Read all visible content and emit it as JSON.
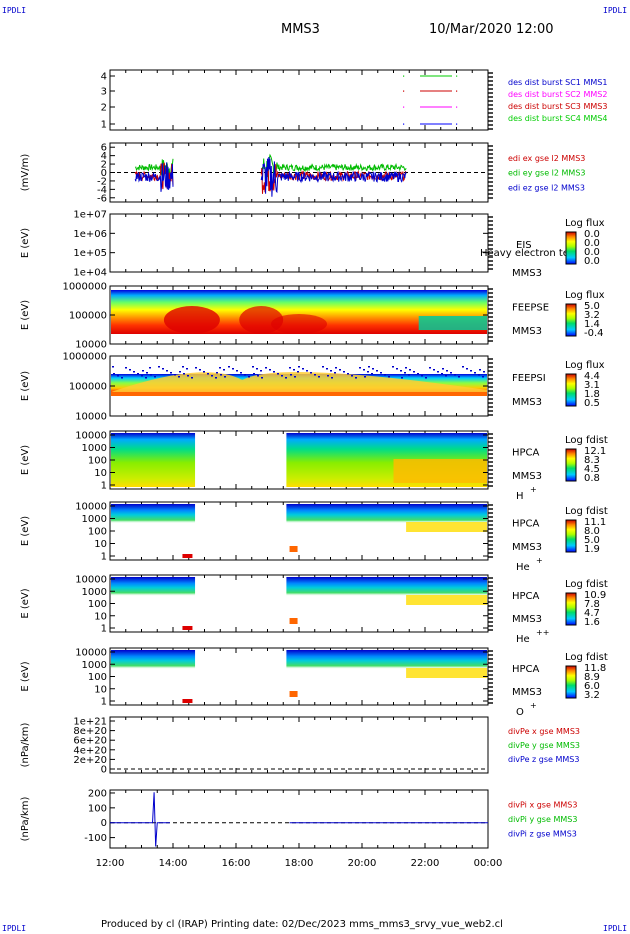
{
  "corner_label": "IPDLI",
  "header": {
    "spacecraft": "MMS3",
    "datetime": "10/Mar/2020 12:00"
  },
  "footer": {
    "text": "Produced by cl (IRAP)   Printing date: 02/Dec/2023   mms_mms3_srvy_vue_web2.cl"
  },
  "colors": {
    "mms1": "#0000ff",
    "mms2": "#ff00ff",
    "mms3": "#cc0000",
    "mms4": "#00cc00",
    "blue": "#0000cc",
    "red": "#cc0000",
    "green": "#00bb00"
  },
  "x_axis": {
    "ticks": [
      "12:00",
      "14:00",
      "16:00",
      "18:00",
      "20:00",
      "22:00",
      "00:00"
    ]
  },
  "chart_data": [
    {
      "type": "line",
      "panel": "burst",
      "ylim": [
        0.5,
        4.5
      ],
      "yticks": [
        "1",
        "2",
        "3",
        "4"
      ],
      "legend": [
        "des dist burst SC1 MMS1",
        "des dist burst SC2 MMS2",
        "des dist burst SC3 MMS3",
        "des dist burst SC4 MMS4"
      ]
    },
    {
      "type": "line",
      "panel": "edi",
      "ylabel": "(mV/m)",
      "ylim": [
        -7,
        7
      ],
      "yticks": [
        "6",
        "4",
        "2",
        "0",
        "-2",
        "-4",
        "-6"
      ],
      "legend": [
        "edi ex gse l2 MMS3",
        "edi ey gse l2 MMS3",
        "edi ez gse l2 MMS3"
      ]
    },
    {
      "type": "heatmap",
      "panel": "eis",
      "ylabel": "E (eV)",
      "yticks": [
        "1e+07",
        "1e+06",
        "1e+05",
        "1e+04"
      ],
      "labels": [
        "EIS",
        "MMS3"
      ],
      "overlay_text": "Heavy electron te",
      "colorbar": {
        "title": "Log flux",
        "ticks": [
          "0.0",
          "0.0",
          "0.0",
          "0.0"
        ]
      }
    },
    {
      "type": "heatmap",
      "panel": "feepse",
      "ylabel": "E (eV)",
      "yticks": [
        "1000000",
        "100000",
        "10000"
      ],
      "labels": [
        "FEEPSE",
        "MMS3"
      ],
      "colorbar": {
        "title": "Log flux",
        "ticks": [
          "5.0",
          "3.2",
          "1.4",
          "-0.4"
        ]
      }
    },
    {
      "type": "heatmap",
      "panel": "feepsi",
      "ylabel": "E (eV)",
      "yticks": [
        "1000000",
        "100000",
        "10000"
      ],
      "labels": [
        "FEEPSI",
        "MMS3"
      ],
      "colorbar": {
        "title": "Log flux",
        "ticks": [
          "4.4",
          "3.1",
          "1.8",
          "0.5"
        ]
      }
    },
    {
      "type": "heatmap",
      "panel": "hpca_h",
      "ylabel": "E (eV)",
      "yticks": [
        "10000",
        "1000",
        "100",
        "10",
        "1"
      ],
      "labels": [
        "HPCA",
        "MMS3"
      ],
      "species": "H",
      "charge": "+",
      "colorbar": {
        "title": "Log fdist",
        "ticks": [
          "12.1",
          "8.3",
          "4.5",
          "0.8"
        ]
      }
    },
    {
      "type": "heatmap",
      "panel": "hpca_he",
      "ylabel": "E (eV)",
      "yticks": [
        "10000",
        "1000",
        "100",
        "10",
        "1"
      ],
      "labels": [
        "HPCA",
        "MMS3"
      ],
      "species": "He",
      "charge": "+",
      "colorbar": {
        "title": "Log fdist",
        "ticks": [
          "11.1",
          "8.0",
          "5.0",
          "1.9"
        ]
      }
    },
    {
      "type": "heatmap",
      "panel": "hpca_he2",
      "ylabel": "E (eV)",
      "yticks": [
        "10000",
        "1000",
        "100",
        "10",
        "1"
      ],
      "labels": [
        "HPCA",
        "MMS3"
      ],
      "species": "He",
      "charge": "++",
      "colorbar": {
        "title": "Log fdist",
        "ticks": [
          "10.9",
          "7.8",
          "4.7",
          "1.6"
        ]
      }
    },
    {
      "type": "heatmap",
      "panel": "hpca_o",
      "ylabel": "E (eV)",
      "yticks": [
        "10000",
        "1000",
        "100",
        "10",
        "1"
      ],
      "labels": [
        "HPCA",
        "MMS3"
      ],
      "species": "O",
      "charge": "+",
      "colorbar": {
        "title": "Log fdist",
        "ticks": [
          "11.8",
          "8.9",
          "6.0",
          "3.2"
        ]
      }
    },
    {
      "type": "line",
      "panel": "divpe",
      "ylabel": "(nPa/km)",
      "ylim": [
        -5e+19,
        1.05e+21
      ],
      "yticks": [
        "1e+21",
        "8e+20",
        "6e+20",
        "4e+20",
        "2e+20",
        "0"
      ],
      "legend": [
        "divPe x gse MMS3",
        "divPe y gse MMS3",
        "divPe z gse MMS3"
      ]
    },
    {
      "type": "line",
      "panel": "divpi",
      "ylabel": "(nPa/km)",
      "ylim": [
        -170,
        220
      ],
      "yticks": [
        "200",
        "100",
        "0",
        "-100"
      ],
      "legend": [
        "divPi x gse MMS3",
        "divPi y gse MMS3",
        "divPi z gse MMS3"
      ]
    }
  ]
}
